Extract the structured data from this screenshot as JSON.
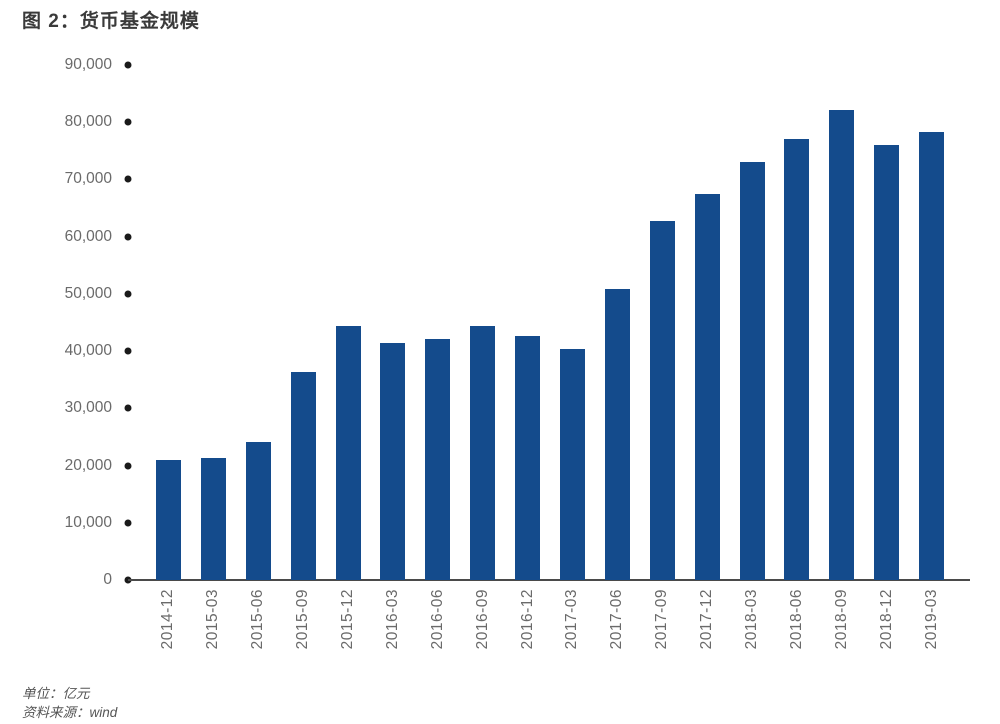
{
  "footer": {
    "unit": "单位：亿元",
    "source": "资料来源：wind"
  },
  "chart_data": {
    "type": "bar",
    "title": "图 2：货币基金规模",
    "categories": [
      "2014-12",
      "2015-03",
      "2015-06",
      "2015-09",
      "2015-12",
      "2016-03",
      "2016-06",
      "2016-09",
      "2016-12",
      "2017-03",
      "2017-06",
      "2017-09",
      "2017-12",
      "2018-03",
      "2018-06",
      "2018-09",
      "2018-12",
      "2019-03"
    ],
    "values": [
      21000,
      21400,
      24200,
      36400,
      44400,
      41500,
      42100,
      44400,
      42600,
      40400,
      50900,
      62800,
      67500,
      73100,
      77100,
      82200,
      76000,
      78300
    ],
    "xlabel": "",
    "ylabel": "亿元",
    "ylim": [
      0,
      90000
    ],
    "ytick_step": 10000,
    "grid": false,
    "legend_position": "none",
    "bar_color": "#144b8c",
    "tick_dot_color": "#1a1a1a",
    "axis_line_color": "#4a4a4a",
    "label_color": "#6a6a6a",
    "title_color": "#3a3a3a"
  }
}
